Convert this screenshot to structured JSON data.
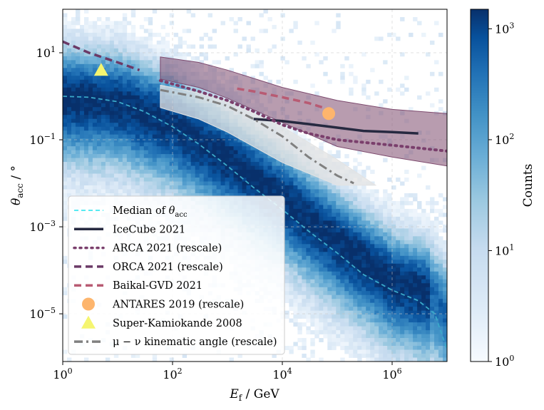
{
  "chart_data": {
    "type": "heatmap",
    "title": "",
    "xlabel": "E_f / GeV",
    "ylabel": "θ_acc / °",
    "xscale": "log",
    "yscale": "log",
    "xlim": [
      1,
      10000000
    ],
    "ylim": [
      8e-07,
      100
    ],
    "x_ticks": [
      {
        "value": 1,
        "base": "10",
        "exp": "0"
      },
      {
        "value": 100,
        "base": "10",
        "exp": "2"
      },
      {
        "value": 10000,
        "base": "10",
        "exp": "4"
      },
      {
        "value": 1000000,
        "base": "10",
        "exp": "6"
      }
    ],
    "y_ticks": [
      {
        "value": 10,
        "base": "10",
        "exp": "1"
      },
      {
        "value": 0.1,
        "base": "10",
        "exp": "−1"
      },
      {
        "value": 0.001,
        "base": "10",
        "exp": "−3"
      },
      {
        "value": 1e-05,
        "base": "10",
        "exp": "−5"
      }
    ],
    "grid": true,
    "colorbar": {
      "label": "Counts",
      "scale": "log",
      "range": [
        1,
        1500
      ],
      "ticks": [
        {
          "value": 1,
          "base": "10",
          "exp": "0"
        },
        {
          "value": 10,
          "base": "10",
          "exp": "1"
        },
        {
          "value": 100,
          "base": "10",
          "exp": "2"
        },
        {
          "value": 1000,
          "base": "10",
          "exp": "3"
        }
      ]
    },
    "heatmap_ridge": {
      "x": [
        1,
        10,
        100,
        1000,
        10000,
        100000,
        1000000,
        5000000,
        10000000
      ],
      "y": [
        1.0,
        0.8,
        0.25,
        0.04,
        0.005,
        0.0005,
        6e-05,
        3e-05,
        1e-05
      ]
    },
    "bands": [
      {
        "name": "ARCA / ORCA uncertainty band",
        "color": "#7d4a6e",
        "opacity": 0.55,
        "upper": {
          "x": [
            60,
            300,
            1000,
            10000,
            100000,
            1000000,
            10000000
          ],
          "y": [
            8,
            6,
            4,
            1.6,
            0.8,
            0.5,
            0.4
          ]
        },
        "lower": {
          "x": [
            60,
            300,
            1000,
            10000,
            100000,
            1000000,
            10000000
          ],
          "y": [
            2.5,
            1.6,
            0.9,
            0.25,
            0.07,
            0.04,
            0.025
          ]
        }
      },
      {
        "name": "kinematic angle band",
        "color": "#e3e3e3",
        "opacity": 0.75,
        "upper": {
          "x": [
            60,
            300,
            1000,
            10000,
            100000,
            500000
          ],
          "y": [
            1.8,
            1.2,
            0.8,
            0.2,
            0.035,
            0.009
          ]
        },
        "lower": {
          "x": [
            60,
            300,
            1000,
            10000,
            100000,
            500000
          ],
          "y": [
            0.55,
            0.3,
            0.15,
            0.03,
            0.009,
            0.009
          ]
        }
      }
    ],
    "series": [
      {
        "name": "Median of θ_acc",
        "style": "dashed",
        "color": "#3aa9c9",
        "x": [
          1,
          3,
          10,
          30,
          100,
          300,
          1000,
          3000,
          10000,
          30000,
          100000,
          300000,
          1000000,
          3000000,
          6000000,
          10000000
        ],
        "y": [
          1.0,
          0.95,
          0.75,
          0.45,
          0.2,
          0.08,
          0.025,
          0.008,
          0.0025,
          0.0008,
          0.00025,
          8e-05,
          3.5e-05,
          2e-05,
          1e-05,
          1.5e-06
        ]
      },
      {
        "name": "IceCube 2021",
        "style": "solid",
        "color": "#262940",
        "x": [
          3000,
          10000,
          30000,
          100000,
          300000,
          1000000,
          3000000
        ],
        "y": [
          0.3,
          0.27,
          0.23,
          0.19,
          0.16,
          0.15,
          0.14
        ]
      },
      {
        "name": "ARCA 2021 (rescale)",
        "style": "dotted",
        "color": "#7a3f6c",
        "x": [
          60,
          300,
          1000,
          3000,
          10000,
          30000,
          100000,
          1000000,
          10000000
        ],
        "y": [
          2.3,
          1.3,
          0.8,
          0.45,
          0.22,
          0.14,
          0.1,
          0.075,
          0.055
        ]
      },
      {
        "name": "ORCA 2021 (rescale)",
        "style": "dashed",
        "color": "#6b3a67",
        "x": [
          1,
          3,
          10,
          25
        ],
        "y": [
          18,
          10,
          6,
          4
        ]
      },
      {
        "name": "Baikal-GVD 2021",
        "style": "dashed",
        "color": "#b85b73",
        "x": [
          1500,
          3000,
          10000,
          30000,
          70000
        ],
        "y": [
          1.5,
          1.3,
          0.95,
          0.7,
          0.5
        ]
      },
      {
        "name": "ANTARES 2019 (rescale)",
        "style": "marker-circle",
        "color": "#fdb56d",
        "x": [
          70000
        ],
        "y": [
          0.4
        ]
      },
      {
        "name": "Super-Kamiokande 2008",
        "style": "marker-triangle",
        "color": "#f5f570",
        "x": [
          5
        ],
        "y": [
          4
        ]
      },
      {
        "name": "μ − ν kinematic angle (rescale)",
        "style": "dashdot",
        "color": "#808080",
        "x": [
          60,
          300,
          1000,
          3000,
          10000,
          30000,
          100000,
          200000
        ],
        "y": [
          1.4,
          0.95,
          0.6,
          0.3,
          0.12,
          0.04,
          0.015,
          0.01
        ]
      }
    ],
    "legend": {
      "position": "lower-left",
      "entries": [
        {
          "label_main": "Median of ",
          "label_math": "θ",
          "label_sub": "acc",
          "marker": "dashed",
          "color": "#40e8f0"
        },
        {
          "label_main": "IceCube 2021",
          "marker": "solid",
          "color": "#262940"
        },
        {
          "label_main": "ARCA 2021 (rescale)",
          "marker": "dotted",
          "color": "#7a3f6c"
        },
        {
          "label_main": "ORCA 2021 (rescale)",
          "marker": "dashed",
          "color": "#6b3a67"
        },
        {
          "label_main": "Baikal-GVD 2021",
          "marker": "dashed",
          "color": "#b85b73"
        },
        {
          "label_main": "ANTARES 2019 (rescale)",
          "marker": "circle",
          "color": "#fdb56d"
        },
        {
          "label_main": "Super-Kamiokande 2008",
          "marker": "triangle",
          "color": "#f5f570"
        },
        {
          "label_main": "μ − ν kinematic angle (rescale)",
          "marker": "dashdot",
          "color": "#808080"
        }
      ]
    },
    "axis_label_parts": {
      "x_symbol": "E",
      "x_sub": "f",
      "x_unit": " / GeV",
      "y_symbol": "θ",
      "y_sub": "acc",
      "y_unit": " / °"
    }
  }
}
